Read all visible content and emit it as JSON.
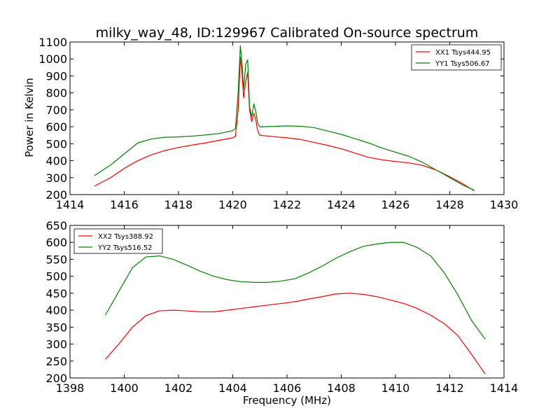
{
  "chart_data": [
    {
      "type": "line",
      "title": "milky_way_48, ID:129967 Calibrated On-source spectrum",
      "xlabel": "",
      "ylabel": "Power in Kelvin",
      "xlim": [
        1414,
        1430
      ],
      "ylim": [
        200,
        1100
      ],
      "xticks": [
        1414,
        1416,
        1418,
        1420,
        1422,
        1424,
        1426,
        1428,
        1430
      ],
      "yticks": [
        200,
        300,
        400,
        500,
        600,
        700,
        800,
        900,
        1000,
        1100
      ],
      "legend_position": "upper right",
      "grid": false,
      "series": [
        {
          "name": "XX1 Tsys444.95",
          "color": "#ff0000",
          "points": [
            [
              1414.9,
              250
            ],
            [
              1415.5,
              300
            ],
            [
              1416,
              355
            ],
            [
              1416.5,
              400
            ],
            [
              1417,
              435
            ],
            [
              1417.5,
              460
            ],
            [
              1418,
              478
            ],
            [
              1418.5,
              492
            ],
            [
              1419,
              505
            ],
            [
              1419.5,
              520
            ],
            [
              1420,
              535
            ],
            [
              1420.1,
              545
            ],
            [
              1420.2,
              700
            ],
            [
              1420.28,
              1012
            ],
            [
              1420.35,
              900
            ],
            [
              1420.4,
              770
            ],
            [
              1420.48,
              870
            ],
            [
              1420.55,
              920
            ],
            [
              1420.62,
              700
            ],
            [
              1420.7,
              630
            ],
            [
              1420.78,
              680
            ],
            [
              1420.85,
              640
            ],
            [
              1420.92,
              575
            ],
            [
              1421,
              550
            ],
            [
              1421.5,
              542
            ],
            [
              1422,
              535
            ],
            [
              1422.5,
              525
            ],
            [
              1423,
              508
            ],
            [
              1423.5,
              490
            ],
            [
              1424,
              470
            ],
            [
              1424.5,
              445
            ],
            [
              1425,
              420
            ],
            [
              1425.5,
              405
            ],
            [
              1426,
              395
            ],
            [
              1426.5,
              387
            ],
            [
              1427,
              372
            ],
            [
              1427.5,
              345
            ],
            [
              1428,
              305
            ],
            [
              1428.5,
              262
            ],
            [
              1428.9,
              222
            ]
          ]
        },
        {
          "name": "YY1 Tsys506.67",
          "color": "#008000",
          "points": [
            [
              1414.9,
              312
            ],
            [
              1415.5,
              375
            ],
            [
              1416,
              440
            ],
            [
              1416.5,
              505
            ],
            [
              1417,
              528
            ],
            [
              1417.5,
              538
            ],
            [
              1418,
              540
            ],
            [
              1418.5,
              545
            ],
            [
              1419,
              552
            ],
            [
              1419.5,
              560
            ],
            [
              1420,
              577
            ],
            [
              1420.1,
              590
            ],
            [
              1420.2,
              800
            ],
            [
              1420.28,
              1078
            ],
            [
              1420.35,
              960
            ],
            [
              1420.4,
              820
            ],
            [
              1420.48,
              970
            ],
            [
              1420.55,
              995
            ],
            [
              1420.62,
              720
            ],
            [
              1420.7,
              660
            ],
            [
              1420.78,
              735
            ],
            [
              1420.85,
              690
            ],
            [
              1420.92,
              620
            ],
            [
              1421,
              600
            ],
            [
              1421.5,
              602
            ],
            [
              1422,
              605
            ],
            [
              1422.5,
              603
            ],
            [
              1423,
              595
            ],
            [
              1423.5,
              575
            ],
            [
              1424,
              555
            ],
            [
              1424.5,
              530
            ],
            [
              1425,
              505
            ],
            [
              1425.5,
              475
            ],
            [
              1426,
              450
            ],
            [
              1426.5,
              425
            ],
            [
              1427,
              390
            ],
            [
              1427.5,
              345
            ],
            [
              1428,
              300
            ],
            [
              1428.5,
              255
            ],
            [
              1428.9,
              226
            ]
          ]
        }
      ]
    },
    {
      "type": "line",
      "title": "",
      "xlabel": "Frequency (MHz)",
      "ylabel": "",
      "xlim": [
        1398,
        1414
      ],
      "ylim": [
        200,
        650
      ],
      "xticks": [
        1398,
        1400,
        1402,
        1404,
        1406,
        1408,
        1410,
        1412,
        1414
      ],
      "yticks": [
        200,
        250,
        300,
        350,
        400,
        450,
        500,
        550,
        600,
        650
      ],
      "legend_position": "upper left",
      "grid": false,
      "series": [
        {
          "name": "XX2 Tsys388.92",
          "color": "#ff0000",
          "points": [
            [
              1399.3,
              255
            ],
            [
              1399.8,
              300
            ],
            [
              1400.3,
              350
            ],
            [
              1400.8,
              384
            ],
            [
              1401.3,
              398
            ],
            [
              1401.8,
              400
            ],
            [
              1402.3,
              398
            ],
            [
              1402.8,
              395
            ],
            [
              1403.3,
              395
            ],
            [
              1403.8,
              400
            ],
            [
              1404.3,
              405
            ],
            [
              1404.8,
              410
            ],
            [
              1405.3,
              415
            ],
            [
              1405.8,
              420
            ],
            [
              1406.3,
              425
            ],
            [
              1406.8,
              433
            ],
            [
              1407.3,
              440
            ],
            [
              1407.8,
              448
            ],
            [
              1408.3,
              450
            ],
            [
              1408.8,
              447
            ],
            [
              1409.3,
              440
            ],
            [
              1409.8,
              430
            ],
            [
              1410.3,
              420
            ],
            [
              1410.8,
              405
            ],
            [
              1411.3,
              385
            ],
            [
              1411.8,
              360
            ],
            [
              1412.3,
              325
            ],
            [
              1412.8,
              270
            ],
            [
              1413.3,
              212
            ]
          ]
        },
        {
          "name": "YY2 Tsys516.52",
          "color": "#008000",
          "points": [
            [
              1399.3,
              385
            ],
            [
              1399.8,
              455
            ],
            [
              1400.3,
              525
            ],
            [
              1400.8,
              557
            ],
            [
              1401.3,
              560
            ],
            [
              1401.8,
              550
            ],
            [
              1402.3,
              533
            ],
            [
              1402.8,
              515
            ],
            [
              1403.3,
              500
            ],
            [
              1403.8,
              490
            ],
            [
              1404.3,
              484
            ],
            [
              1404.8,
              482
            ],
            [
              1405.3,
              482
            ],
            [
              1405.8,
              486
            ],
            [
              1406.3,
              493
            ],
            [
              1406.8,
              510
            ],
            [
              1407.3,
              530
            ],
            [
              1407.8,
              553
            ],
            [
              1408.3,
              572
            ],
            [
              1408.8,
              588
            ],
            [
              1409.3,
              595
            ],
            [
              1409.8,
              600
            ],
            [
              1410.3,
              600
            ],
            [
              1410.8,
              585
            ],
            [
              1411.3,
              560
            ],
            [
              1411.8,
              510
            ],
            [
              1412.3,
              445
            ],
            [
              1412.8,
              370
            ],
            [
              1413.3,
              315
            ]
          ]
        }
      ]
    }
  ]
}
